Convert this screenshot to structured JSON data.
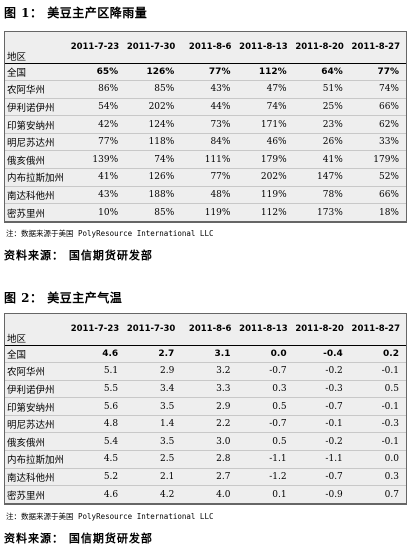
{
  "figure1": {
    "title": "图 1： 美豆主产区降雨量",
    "region_header": "地区",
    "columns": [
      "2011-7-23",
      "2011-7-30",
      "2011-8-6",
      "2011-8-13",
      "2011-8-20",
      "2011-8-27"
    ],
    "rows": [
      {
        "region": "全国",
        "values": [
          "65%",
          "126%",
          "77%",
          "112%",
          "64%",
          "77%"
        ]
      },
      {
        "region": "农阿华州",
        "values": [
          "86%",
          "85%",
          "43%",
          "47%",
          "51%",
          "74%"
        ]
      },
      {
        "region": "伊利诺伊州",
        "values": [
          "54%",
          "202%",
          "44%",
          "74%",
          "25%",
          "66%"
        ]
      },
      {
        "region": "印第安纳州",
        "values": [
          "42%",
          "124%",
          "73%",
          "171%",
          "23%",
          "62%"
        ]
      },
      {
        "region": "明尼苏达州",
        "values": [
          "77%",
          "118%",
          "84%",
          "46%",
          "26%",
          "33%"
        ]
      },
      {
        "region": "俄亥俄州",
        "values": [
          "139%",
          "74%",
          "111%",
          "179%",
          "41%",
          "179%"
        ]
      },
      {
        "region": "内布拉斯加州",
        "values": [
          "41%",
          "126%",
          "77%",
          "202%",
          "147%",
          "52%"
        ]
      },
      {
        "region": "南达科他州",
        "values": [
          "43%",
          "188%",
          "48%",
          "119%",
          "78%",
          "66%"
        ]
      },
      {
        "region": "密苏里州",
        "values": [
          "10%",
          "85%",
          "119%",
          "112%",
          "173%",
          "18%"
        ]
      }
    ],
    "note": "注：数据来源于美国 PolyResource International LLC",
    "source": "资料来源： 国信期货研发部"
  },
  "figure2": {
    "title": "图 2： 美豆主产气温",
    "region_header": "地区",
    "columns": [
      "2011-7-23",
      "2011-7-30",
      "2011-8-6",
      "2011-8-13",
      "2011-8-20",
      "2011-8-27"
    ],
    "rows": [
      {
        "region": "全国",
        "values": [
          "4.6",
          "2.7",
          "3.1",
          "0.0",
          "-0.4",
          "0.2"
        ]
      },
      {
        "region": "农阿华州",
        "values": [
          "5.1",
          "2.9",
          "3.2",
          "-0.7",
          "-0.2",
          "-0.1"
        ]
      },
      {
        "region": "伊利诺伊州",
        "values": [
          "5.5",
          "3.4",
          "3.3",
          "0.3",
          "-0.3",
          "0.5"
        ]
      },
      {
        "region": "印第安纳州",
        "values": [
          "5.6",
          "3.5",
          "2.9",
          "0.5",
          "-0.7",
          "-0.1"
        ]
      },
      {
        "region": "明尼苏达州",
        "values": [
          "4.8",
          "1.4",
          "2.2",
          "-0.7",
          "-0.1",
          "-0.3"
        ]
      },
      {
        "region": "俄亥俄州",
        "values": [
          "5.4",
          "3.5",
          "3.0",
          "0.5",
          "-0.2",
          "-0.1"
        ]
      },
      {
        "region": "内布拉斯加州",
        "values": [
          "4.5",
          "2.5",
          "2.8",
          "-1.1",
          "-1.1",
          "0.0"
        ]
      },
      {
        "region": "南达科他州",
        "values": [
          "5.2",
          "2.1",
          "2.7",
          "-1.2",
          "-0.7",
          "0.3"
        ]
      },
      {
        "region": "密苏里州",
        "values": [
          "4.6",
          "4.2",
          "4.0",
          "0.1",
          "-0.9",
          "0.7"
        ]
      }
    ],
    "note": "注：数据来源于美国 PolyResource International LLC",
    "source": "资料来源： 国信期货研发部"
  }
}
